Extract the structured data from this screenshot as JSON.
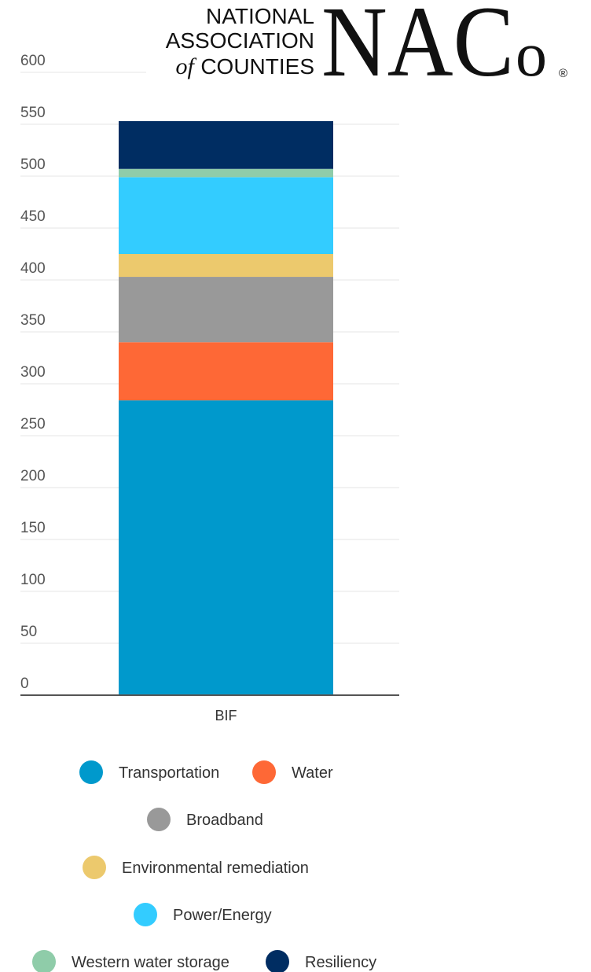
{
  "logo": {
    "line1": "NATIONAL",
    "line2": "ASSOCIATION",
    "line3_of": "of",
    "line3_rest": "COUNTIES",
    "mark_big": "NAC",
    "mark_o": "o",
    "registered": "®"
  },
  "colors": {
    "Transportation": "#0099cc",
    "Water": "#fe6836",
    "Broadband": "#999999",
    "Environmental remediation": "#ecc96d",
    "Power/Energy": "#33ccff",
    "Western water storage": "#8fcca9",
    "Resiliency": "#002d62",
    "grid": "#e6e6e6",
    "axis": "#555555"
  },
  "chart_data": {
    "type": "bar",
    "stacked": true,
    "categories": [
      "BIF"
    ],
    "series": [
      {
        "name": "Transportation",
        "values": [
          284
        ]
      },
      {
        "name": "Water",
        "values": [
          56
        ]
      },
      {
        "name": "Broadband",
        "values": [
          63
        ]
      },
      {
        "name": "Environmental remediation",
        "values": [
          22
        ]
      },
      {
        "name": "Power/Energy",
        "values": [
          74
        ]
      },
      {
        "name": "Western water storage",
        "values": [
          8
        ]
      },
      {
        "name": "Resiliency",
        "values": [
          46
        ]
      }
    ],
    "yticks": [
      0,
      50,
      100,
      150,
      200,
      250,
      300,
      350,
      400,
      450,
      500,
      550,
      600
    ],
    "ylim": [
      0,
      600
    ],
    "grid": true,
    "legend_position": "bottom"
  }
}
